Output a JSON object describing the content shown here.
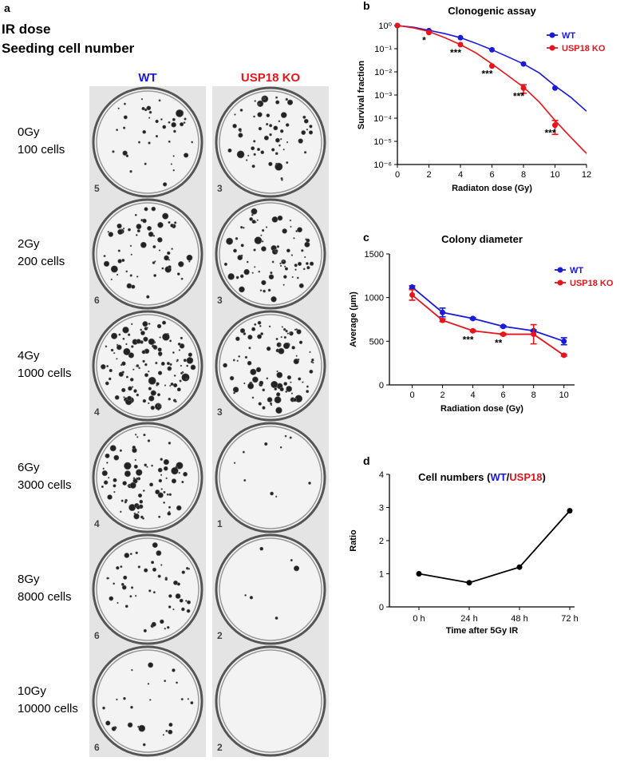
{
  "panel_a": {
    "panel_label": "a",
    "header": [
      "IR dose",
      "Seeding cell number"
    ],
    "columns": [
      {
        "text": "WT",
        "color": "#1a1adb"
      },
      {
        "text": "USP18 KO",
        "color": "#e8141b"
      }
    ],
    "rows": [
      {
        "dose": "0Gy",
        "cells": "100 cells",
        "plates": [
          "5",
          "3"
        ]
      },
      {
        "dose": "2Gy",
        "cells": "200 cells",
        "plates": [
          "6",
          "3"
        ]
      },
      {
        "dose": "4Gy",
        "cells": "1000 cells",
        "plates": [
          "4",
          "3"
        ]
      },
      {
        "dose": "6Gy",
        "cells": "3000 cells",
        "plates": [
          "4",
          "1"
        ]
      },
      {
        "dose": "8Gy",
        "cells": "8000 cells",
        "plates": [
          "6",
          "2"
        ]
      },
      {
        "dose": "10Gy",
        "cells": "10000 cells",
        "plates": [
          "6",
          "2"
        ]
      }
    ]
  },
  "chart_data": [
    {
      "type": "scatter",
      "panel_label": "b",
      "title": "Clonogenic assay",
      "x_label": "Radiaton dose (Gy)",
      "y_label": "Survival fraction",
      "log_y": true,
      "xlim": [
        0,
        12
      ],
      "xticks": [
        0,
        2,
        4,
        6,
        8,
        10,
        12
      ],
      "ylim": [
        1e-06,
        1
      ],
      "yticks": [
        {
          "value": 1e-06,
          "label": "10⁻⁶"
        },
        {
          "value": 1e-05,
          "label": "10⁻⁵"
        },
        {
          "value": 0.0001,
          "label": "10⁻⁴"
        },
        {
          "value": 0.001,
          "label": "10⁻³"
        },
        {
          "value": 0.01,
          "label": "10⁻²"
        },
        {
          "value": 0.1,
          "label": "10⁻¹"
        },
        {
          "value": 1,
          "label": "10⁰"
        }
      ],
      "legend": "upper right",
      "series": [
        {
          "name": "WT",
          "color": "#1a1adb",
          "x": [
            0,
            2,
            4,
            6,
            8,
            10
          ],
          "values": [
            1,
            0.6,
            0.3,
            0.09,
            0.022,
            0.002
          ],
          "fit": {
            "x": [
              0,
              1,
              2,
              3,
              4,
              5,
              6,
              7,
              8,
              9,
              10,
              11,
              12
            ],
            "values": [
              1,
              0.85,
              0.62,
              0.45,
              0.3,
              0.17,
              0.09,
              0.045,
              0.022,
              0.009,
              0.0025,
              0.0008,
              0.0002
            ]
          }
        },
        {
          "name": "USP18 KO",
          "color": "#e8141b",
          "x": [
            0,
            2,
            4,
            6,
            8,
            10
          ],
          "values": [
            1,
            0.5,
            0.15,
            0.018,
            0.002,
            5e-05
          ],
          "errors": [
            null,
            null,
            null,
            null,
            0.0008,
            3e-05
          ],
          "fit": {
            "x": [
              0,
              1,
              2,
              3,
              4,
              5,
              6,
              7,
              8,
              9,
              10,
              11,
              12
            ],
            "values": [
              1,
              0.8,
              0.55,
              0.3,
              0.15,
              0.065,
              0.022,
              0.007,
              0.0022,
              0.0005,
              8e-05,
              1.5e-05,
              3e-06
            ]
          }
        }
      ],
      "annotations": [
        {
          "text": "*",
          "x": 2
        },
        {
          "text": "***",
          "x": 4
        },
        {
          "text": "***",
          "x": 6
        },
        {
          "text": "***",
          "x": 8
        },
        {
          "text": "***",
          "x": 10
        }
      ]
    },
    {
      "type": "line",
      "panel_label": "c",
      "title": "Colony diameter",
      "x_label": "Radiation dose (Gy)",
      "y_label": "Average (µm)",
      "xlim": [
        -1.5,
        10.7
      ],
      "xticks": [
        0,
        2,
        4,
        6,
        8,
        10
      ],
      "ylim": [
        0,
        1500
      ],
      "yticks": [
        0,
        500,
        1000,
        1500
      ],
      "legend": "upper right",
      "series": [
        {
          "name": "WT",
          "color": "#1a1adb",
          "x": [
            0,
            2,
            4,
            6,
            8,
            10
          ],
          "values": [
            1120,
            830,
            760,
            670,
            620,
            500
          ],
          "errors": [
            15,
            50,
            10,
            10,
            10,
            40
          ]
        },
        {
          "name": "USP18 KO",
          "color": "#e8141b",
          "x": [
            0,
            2,
            4,
            6,
            8,
            10
          ],
          "values": [
            1030,
            740,
            620,
            580,
            580,
            340
          ],
          "errors": [
            60,
            15,
            10,
            10,
            110,
            10
          ]
        }
      ],
      "annotations": [
        {
          "text": "***",
          "x": 4
        },
        {
          "text": "**",
          "x": 6
        }
      ]
    },
    {
      "type": "line",
      "panel_label": "d",
      "title_parts": [
        {
          "text": "Cell numbers (",
          "color": "#000000"
        },
        {
          "text": "WT",
          "color": "#1a1adb"
        },
        {
          "text": "/",
          "color": "#000000"
        },
        {
          "text": "USP18",
          "color": "#e8141b"
        },
        {
          "text": ")",
          "color": "#000000"
        }
      ],
      "x_label": "Time after 5Gy IR",
      "y_label": "Ratio",
      "categories": [
        "0 h",
        "24 h",
        "48 h",
        "72 h"
      ],
      "ylim": [
        0,
        4
      ],
      "yticks": [
        0,
        1,
        2,
        3,
        4
      ],
      "series": [
        {
          "color": "#000000",
          "values": [
            1,
            0.73,
            1.2,
            2.9
          ]
        }
      ]
    }
  ]
}
